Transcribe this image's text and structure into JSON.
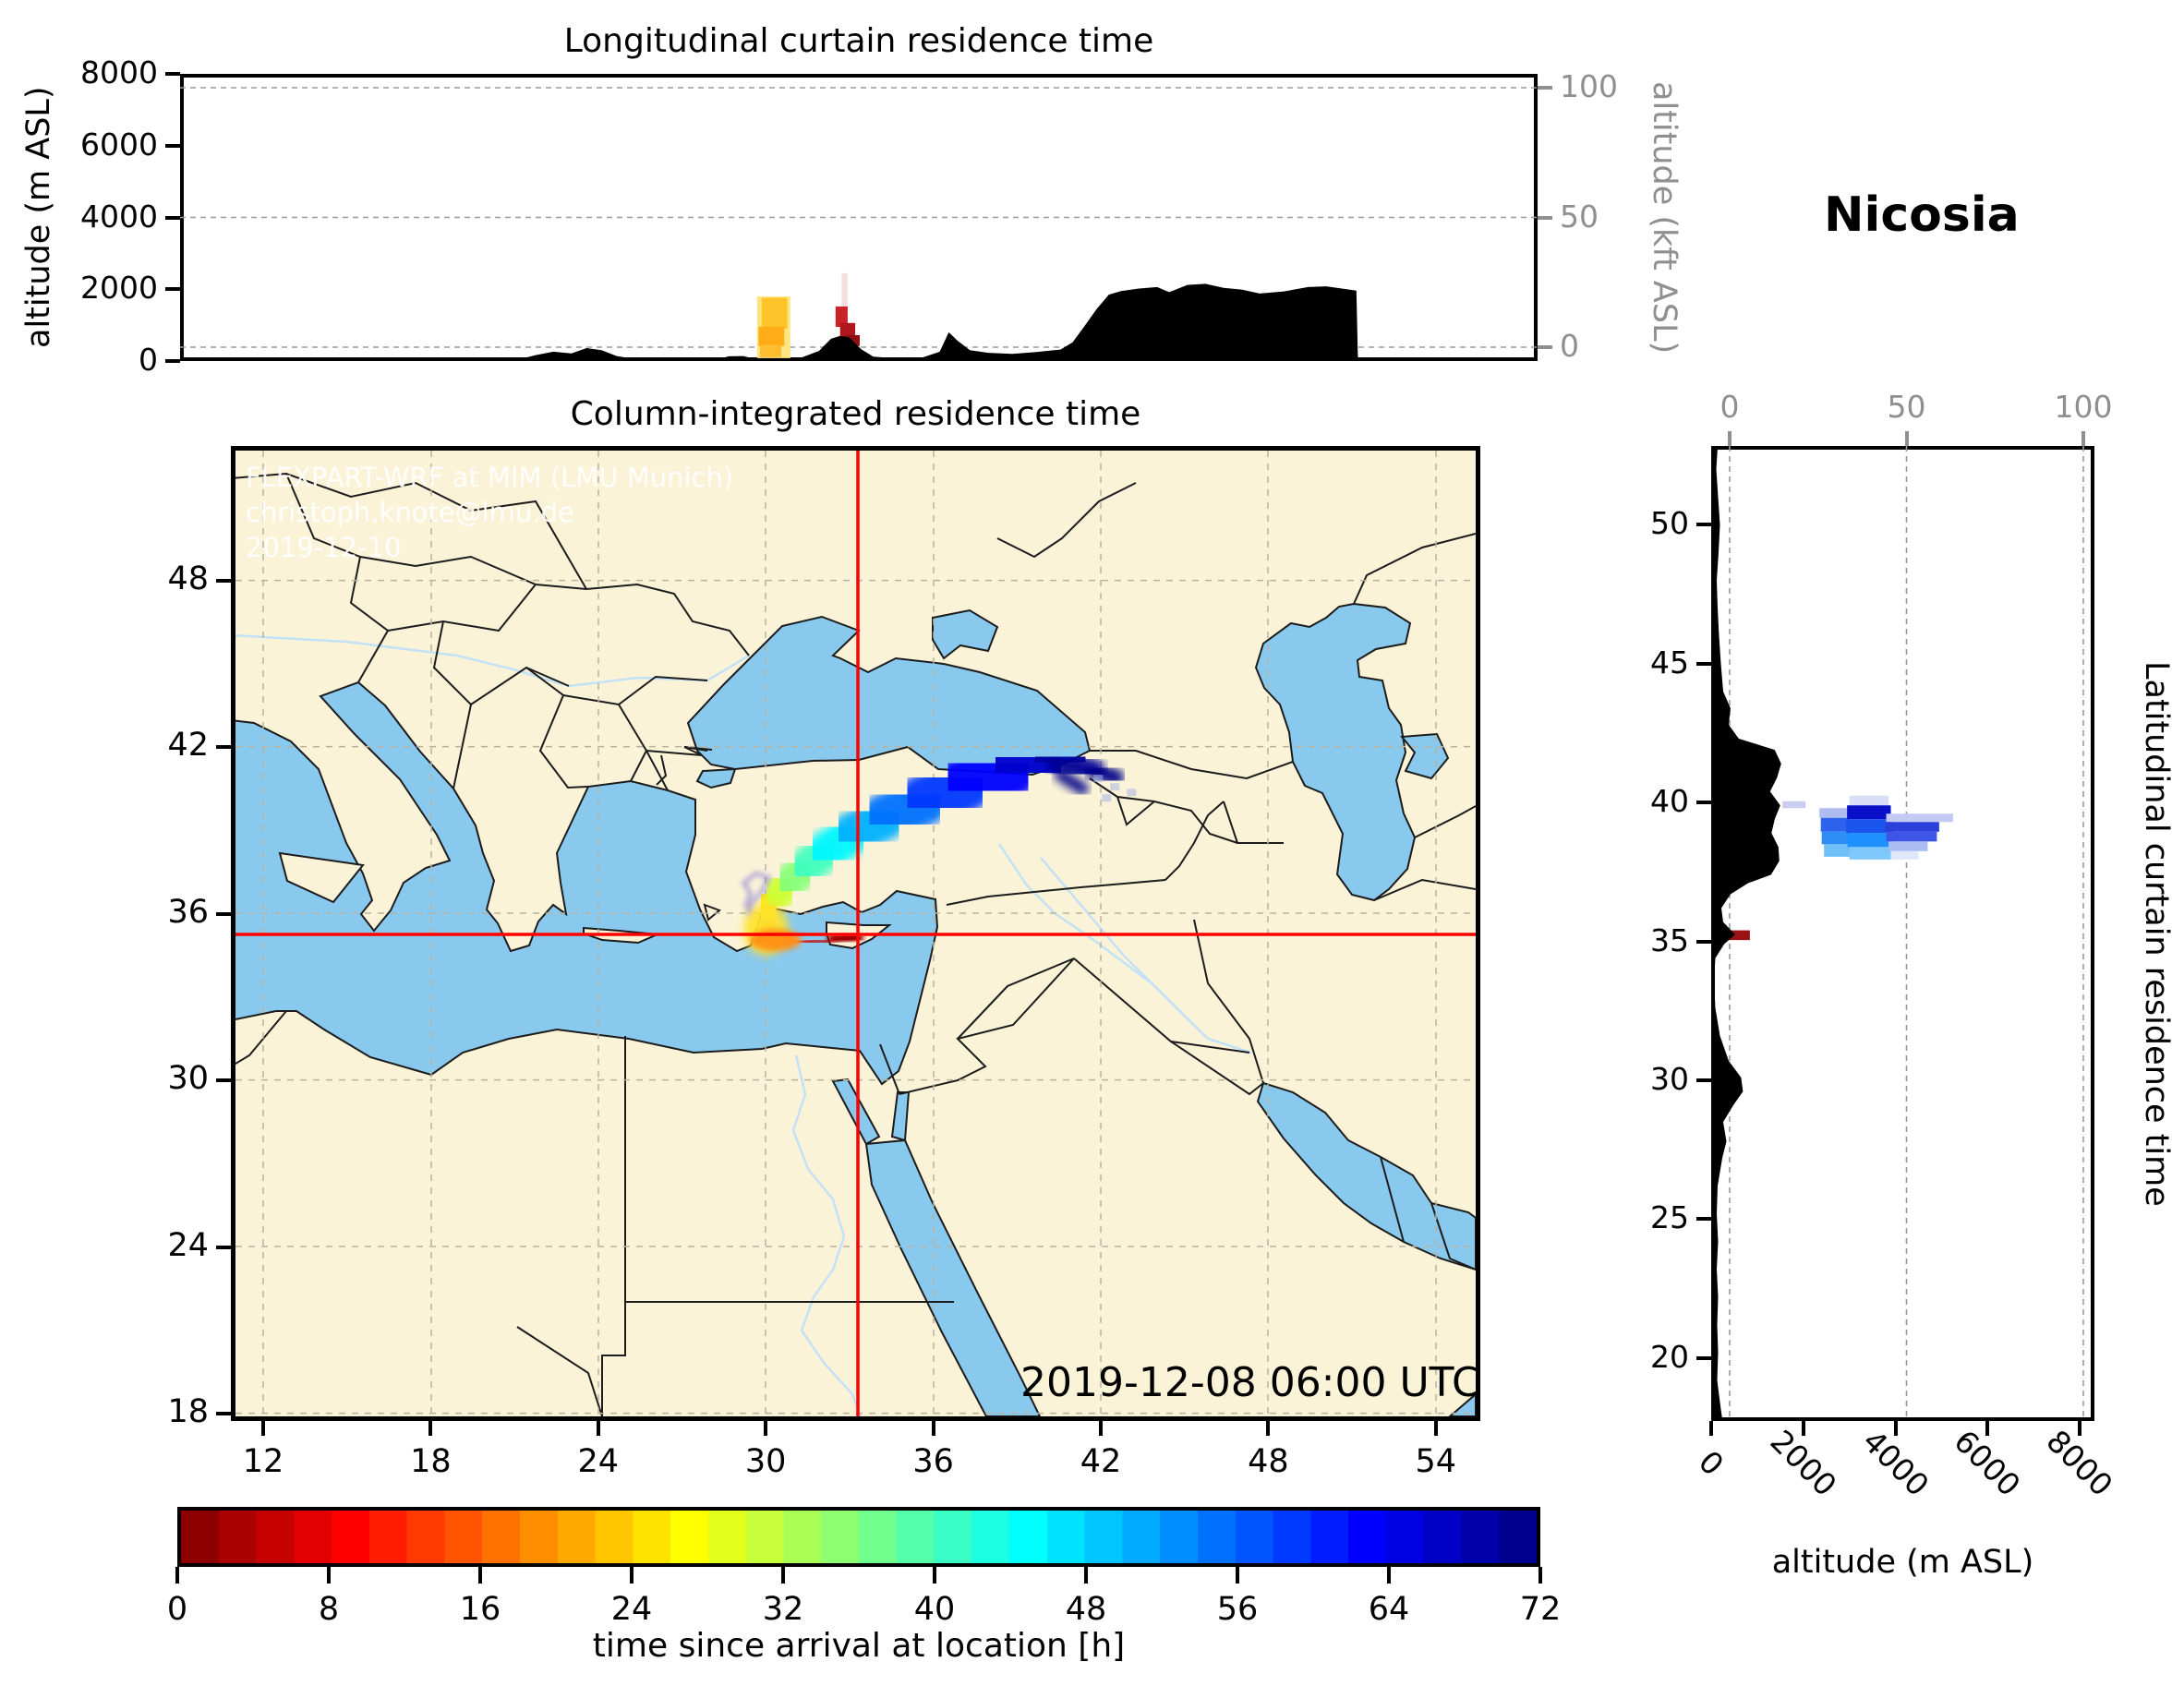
{
  "station_title": "Nicosia",
  "top_panel": {
    "title": "Longitudinal curtain residence time",
    "ylabel": "altitude (m ASL)",
    "ylabel_right": "altitude (kft ASL)",
    "yticks": [
      "8000",
      "6000",
      "4000",
      "2000",
      "0"
    ],
    "yticks_right": [
      "100",
      "50",
      "0"
    ]
  },
  "map_panel": {
    "title": "Column-integrated residence time",
    "timestamp": "2019-12-08 06:00 UTC",
    "watermark": [
      "FLEXPART-WRF at MIM (LMU Munich)",
      "christoph.knote@lmu.de",
      "2019-12-10"
    ],
    "xticks": [
      "12",
      "18",
      "24",
      "30",
      "36",
      "42",
      "48",
      "54"
    ],
    "yticks": [
      "48",
      "42",
      "36",
      "30",
      "24",
      "18"
    ]
  },
  "right_panel": {
    "xlabel": "altitude (m ASL)",
    "ylabel_right": "Latitudinal curtain residence time",
    "xticks": [
      "0",
      "2000",
      "4000",
      "6000",
      "8000"
    ],
    "xticks_top": [
      "0",
      "50",
      "100"
    ],
    "yticks": [
      "50",
      "45",
      "40",
      "35",
      "30",
      "25",
      "20"
    ]
  },
  "colorbar": {
    "label": "time since arrival at location [h]",
    "ticks": [
      "0",
      "8",
      "16",
      "24",
      "32",
      "40",
      "48",
      "56",
      "64",
      "72"
    ],
    "min_h": 0,
    "max_h": 72,
    "segments": 36,
    "colormap": "jet_reversed"
  },
  "colors": {
    "land": "#faf3d8",
    "sea": "#89c9ee",
    "border": "#1c1c1c",
    "river": "#c3e2f5",
    "map_grid": "#b8b29f",
    "panel_grid": "#9a9a9a",
    "crosshair": "#ff0000",
    "terrain": "#000000",
    "secondary_axis": "#8f8f8f"
  },
  "chart_data": {
    "type": "heatmap",
    "title": "FLEXPART backward residence time, receptor Nicosia",
    "map": {
      "lon_range": [
        10.8,
        55.8
      ],
      "lat_range": [
        17.8,
        52.8
      ],
      "receptor": {
        "name": "Nicosia",
        "lon": 33.4,
        "lat": 35.2
      },
      "plume_path": [
        {
          "lon": 33.35,
          "lat": 35.15,
          "h": 1,
          "w": 9
        },
        {
          "lon": 32.5,
          "lat": 35.03,
          "h": 3,
          "w": 10
        },
        {
          "lon": 31.6,
          "lat": 34.98,
          "h": 6,
          "w": 11
        },
        {
          "lon": 30.8,
          "lat": 35.0,
          "h": 9,
          "w": 13
        },
        {
          "lon": 30.25,
          "lat": 35.15,
          "h": 13,
          "w": 22
        },
        {
          "lon": 30.0,
          "lat": 35.55,
          "h": 18,
          "w": 32
        },
        {
          "lon": 30.05,
          "lat": 36.0,
          "h": 23,
          "w": 34
        },
        {
          "lon": 30.35,
          "lat": 36.5,
          "h": 28,
          "w": 35
        },
        {
          "lon": 30.85,
          "lat": 37.05,
          "h": 33,
          "w": 36
        },
        {
          "lon": 31.45,
          "lat": 37.6,
          "h": 38,
          "w": 38
        },
        {
          "lon": 32.2,
          "lat": 38.2,
          "h": 43,
          "w": 41
        },
        {
          "lon": 33.2,
          "lat": 38.85,
          "h": 48,
          "w": 45
        },
        {
          "lon": 34.4,
          "lat": 39.45,
          "h": 53,
          "w": 50
        },
        {
          "lon": 35.8,
          "lat": 40.05,
          "h": 57,
          "w": 56
        },
        {
          "lon": 37.3,
          "lat": 40.65,
          "h": 61,
          "w": 62
        },
        {
          "lon": 38.9,
          "lat": 41.2,
          "h": 65,
          "w": 66
        },
        {
          "lon": 40.2,
          "lat": 41.5,
          "h": 68,
          "w": 62
        },
        {
          "lon": 41.2,
          "lat": 41.6,
          "h": 71,
          "w": 50
        }
      ],
      "plume_branches": [
        [
          {
            "lon": 40.6,
            "lat": 41.45,
            "h": 70,
            "w": 28
          },
          {
            "lon": 41.9,
            "lat": 41.15,
            "h": 71,
            "w": 22
          },
          {
            "lon": 42.7,
            "lat": 40.9,
            "h": 72,
            "w": 14
          }
        ],
        [
          {
            "lon": 40.7,
            "lat": 41.0,
            "h": 71,
            "w": 16
          },
          {
            "lon": 41.5,
            "lat": 40.5,
            "h": 72,
            "w": 10
          }
        ]
      ],
      "thin_trail": [
        [
          29.35,
          36.2
        ],
        [
          29.55,
          36.75
        ],
        [
          29.3,
          37.1
        ],
        [
          29.75,
          37.45
        ],
        [
          30.2,
          37.3
        ],
        [
          30.0,
          36.85
        ],
        [
          29.6,
          36.4
        ],
        [
          29.45,
          35.95
        ]
      ]
    },
    "longitudinal_curtain": {
      "x_range_lon": [
        10.8,
        55.8
      ],
      "alt_range_m": [
        0,
        8000
      ],
      "terrain": [
        [
          10.8,
          0
        ],
        [
          20,
          0
        ],
        [
          22,
          30
        ],
        [
          22.6,
          160
        ],
        [
          23.2,
          260
        ],
        [
          23.8,
          210
        ],
        [
          24.3,
          360
        ],
        [
          24.8,
          300
        ],
        [
          25.3,
          140
        ],
        [
          26,
          40
        ],
        [
          27.5,
          0
        ],
        [
          28.6,
          20
        ],
        [
          29,
          130
        ],
        [
          29.5,
          140
        ],
        [
          29.9,
          50
        ],
        [
          30.6,
          20
        ],
        [
          31.4,
          90
        ],
        [
          32,
          280
        ],
        [
          32.4,
          620
        ],
        [
          32.7,
          700
        ],
        [
          33,
          660
        ],
        [
          33.4,
          330
        ],
        [
          33.8,
          120
        ],
        [
          34.6,
          70
        ],
        [
          35.4,
          90
        ],
        [
          36,
          260
        ],
        [
          36.3,
          800
        ],
        [
          36.6,
          560
        ],
        [
          37,
          300
        ],
        [
          37.6,
          230
        ],
        [
          38.4,
          200
        ],
        [
          39.2,
          250
        ],
        [
          40,
          320
        ],
        [
          40.4,
          520
        ],
        [
          40.8,
          980
        ],
        [
          41.2,
          1450
        ],
        [
          41.6,
          1850
        ],
        [
          42,
          1950
        ],
        [
          42.6,
          2020
        ],
        [
          43.2,
          2060
        ],
        [
          43.6,
          1920
        ],
        [
          44.2,
          2120
        ],
        [
          44.8,
          2150
        ],
        [
          45.4,
          2040
        ],
        [
          46,
          1990
        ],
        [
          46.6,
          1880
        ],
        [
          47.4,
          1940
        ],
        [
          48.2,
          2060
        ],
        [
          48.8,
          2080
        ],
        [
          49.4,
          2010
        ],
        [
          49.8,
          1960
        ],
        [
          49.85,
          0
        ]
      ],
      "patches": [
        {
          "lon": [
            29.95,
            31.05
          ],
          "alt": [
            80,
            1800
          ],
          "color": "#ffe580"
        },
        {
          "lon": [
            30.1,
            30.95
          ],
          "alt": [
            900,
            1760
          ],
          "color": "#ffc42a"
        },
        {
          "lon": [
            30.0,
            30.85
          ],
          "alt": [
            420,
            960
          ],
          "color": "#ffac18"
        },
        {
          "lon": [
            30.05,
            30.75
          ],
          "alt": [
            110,
            450
          ],
          "color": "#ffbd2f"
        },
        {
          "lon": [
            32.75,
            32.95
          ],
          "alt": [
            1500,
            2450
          ],
          "color": "#f4dfdf"
        },
        {
          "lon": [
            32.55,
            32.95
          ],
          "alt": [
            950,
            1520
          ],
          "color": "#cb2128"
        },
        {
          "lon": [
            32.7,
            33.2
          ],
          "alt": [
            580,
            1060
          ],
          "color": "#b0161c"
        },
        {
          "lon": [
            32.9,
            33.35
          ],
          "alt": [
            420,
            720
          ],
          "color": "#8f1014"
        }
      ]
    },
    "latitudinal_curtain": {
      "y_range_lat": [
        17.8,
        52.8
      ],
      "alt_range_m": [
        0,
        8000
      ],
      "terrain": [
        [
          52.8,
          140
        ],
        [
          52,
          110
        ],
        [
          51,
          150
        ],
        [
          50,
          190
        ],
        [
          49,
          160
        ],
        [
          48,
          120
        ],
        [
          47,
          140
        ],
        [
          46,
          170
        ],
        [
          45,
          210
        ],
        [
          44,
          260
        ],
        [
          43.4,
          420
        ],
        [
          42.8,
          380
        ],
        [
          42.3,
          600
        ],
        [
          41.9,
          1380
        ],
        [
          41.4,
          1520
        ],
        [
          40.9,
          1430
        ],
        [
          40.4,
          1280
        ],
        [
          39.9,
          1500
        ],
        [
          39.4,
          1380
        ],
        [
          38.9,
          1310
        ],
        [
          38.4,
          1460
        ],
        [
          37.9,
          1480
        ],
        [
          37.4,
          1300
        ],
        [
          37.1,
          800
        ],
        [
          36.7,
          420
        ],
        [
          36.2,
          220
        ],
        [
          35.7,
          260
        ],
        [
          35.25,
          520
        ],
        [
          34.9,
          280
        ],
        [
          34.4,
          90
        ],
        [
          33.6,
          60
        ],
        [
          32.6,
          90
        ],
        [
          31.6,
          190
        ],
        [
          30.7,
          380
        ],
        [
          30.1,
          650
        ],
        [
          29.6,
          690
        ],
        [
          29.1,
          480
        ],
        [
          28.5,
          260
        ],
        [
          27.8,
          330
        ],
        [
          27.2,
          240
        ],
        [
          26.2,
          140
        ],
        [
          25.2,
          120
        ],
        [
          24.2,
          150
        ],
        [
          23.2,
          120
        ],
        [
          22.2,
          150
        ],
        [
          21.2,
          130
        ],
        [
          20.2,
          150
        ],
        [
          19.2,
          130
        ],
        [
          18.4,
          190
        ],
        [
          17.8,
          240
        ]
      ],
      "patches": [
        {
          "lat": [
            39.8,
            40.05
          ],
          "alt": [
            1550,
            2050
          ],
          "color": "#c9cdf0"
        },
        {
          "lat": [
            39.45,
            39.8
          ],
          "alt": [
            2350,
            3020
          ],
          "color": "#aebcf2"
        },
        {
          "lat": [
            38.95,
            39.45
          ],
          "alt": [
            2380,
            3000
          ],
          "color": "#2e63ee"
        },
        {
          "lat": [
            38.5,
            38.95
          ],
          "alt": [
            2400,
            3040
          ],
          "color": "#2e8ef5"
        },
        {
          "lat": [
            38.05,
            38.5
          ],
          "alt": [
            2450,
            3060
          ],
          "color": "#6fc0f9"
        },
        {
          "lat": [
            39.9,
            40.25
          ],
          "alt": [
            3000,
            3850
          ],
          "color": "#d9def6"
        },
        {
          "lat": [
            39.4,
            39.9
          ],
          "alt": [
            2950,
            3900
          ],
          "color": "#0a10c8"
        },
        {
          "lat": [
            38.9,
            39.4
          ],
          "alt": [
            2930,
            3950
          ],
          "color": "#1b55f0"
        },
        {
          "lat": [
            38.4,
            38.9
          ],
          "alt": [
            2960,
            3960
          ],
          "color": "#1e90ff"
        },
        {
          "lat": [
            37.95,
            38.4
          ],
          "alt": [
            3000,
            3920
          ],
          "color": "#7fc8fb"
        },
        {
          "lat": [
            39.3,
            39.6
          ],
          "alt": [
            3800,
            5250
          ],
          "color": "#c3cbf4"
        },
        {
          "lat": [
            38.95,
            39.3
          ],
          "alt": [
            3780,
            4950
          ],
          "color": "#2c3fd8"
        },
        {
          "lat": [
            38.6,
            38.95
          ],
          "alt": [
            3800,
            4900
          ],
          "color": "#3d56e8"
        },
        {
          "lat": [
            38.25,
            38.6
          ],
          "alt": [
            3850,
            4700
          ],
          "color": "#a9bdf2"
        },
        {
          "lat": [
            37.95,
            38.25
          ],
          "alt": [
            3900,
            4500
          ],
          "color": "#dfe7fb"
        },
        {
          "lat": [
            35.05,
            35.4
          ],
          "alt": [
            260,
            840
          ],
          "color": "#9b1216"
        }
      ]
    }
  }
}
